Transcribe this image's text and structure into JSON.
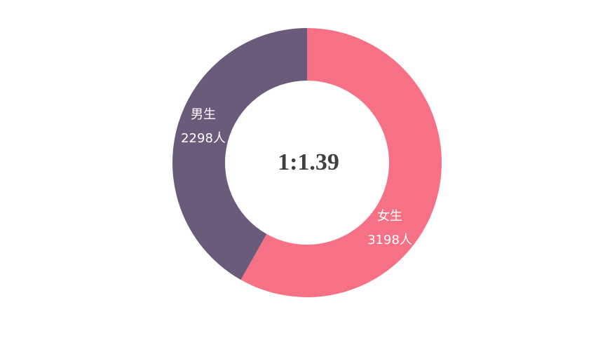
{
  "chart_data": {
    "type": "pie",
    "categories": [
      "女生",
      "男生"
    ],
    "values": [
      3198,
      2298
    ],
    "value_labels": [
      "3198人",
      "2298人"
    ],
    "colors": [
      "#f67186",
      "#6b5b7b"
    ],
    "center_text": "1:1.39"
  }
}
